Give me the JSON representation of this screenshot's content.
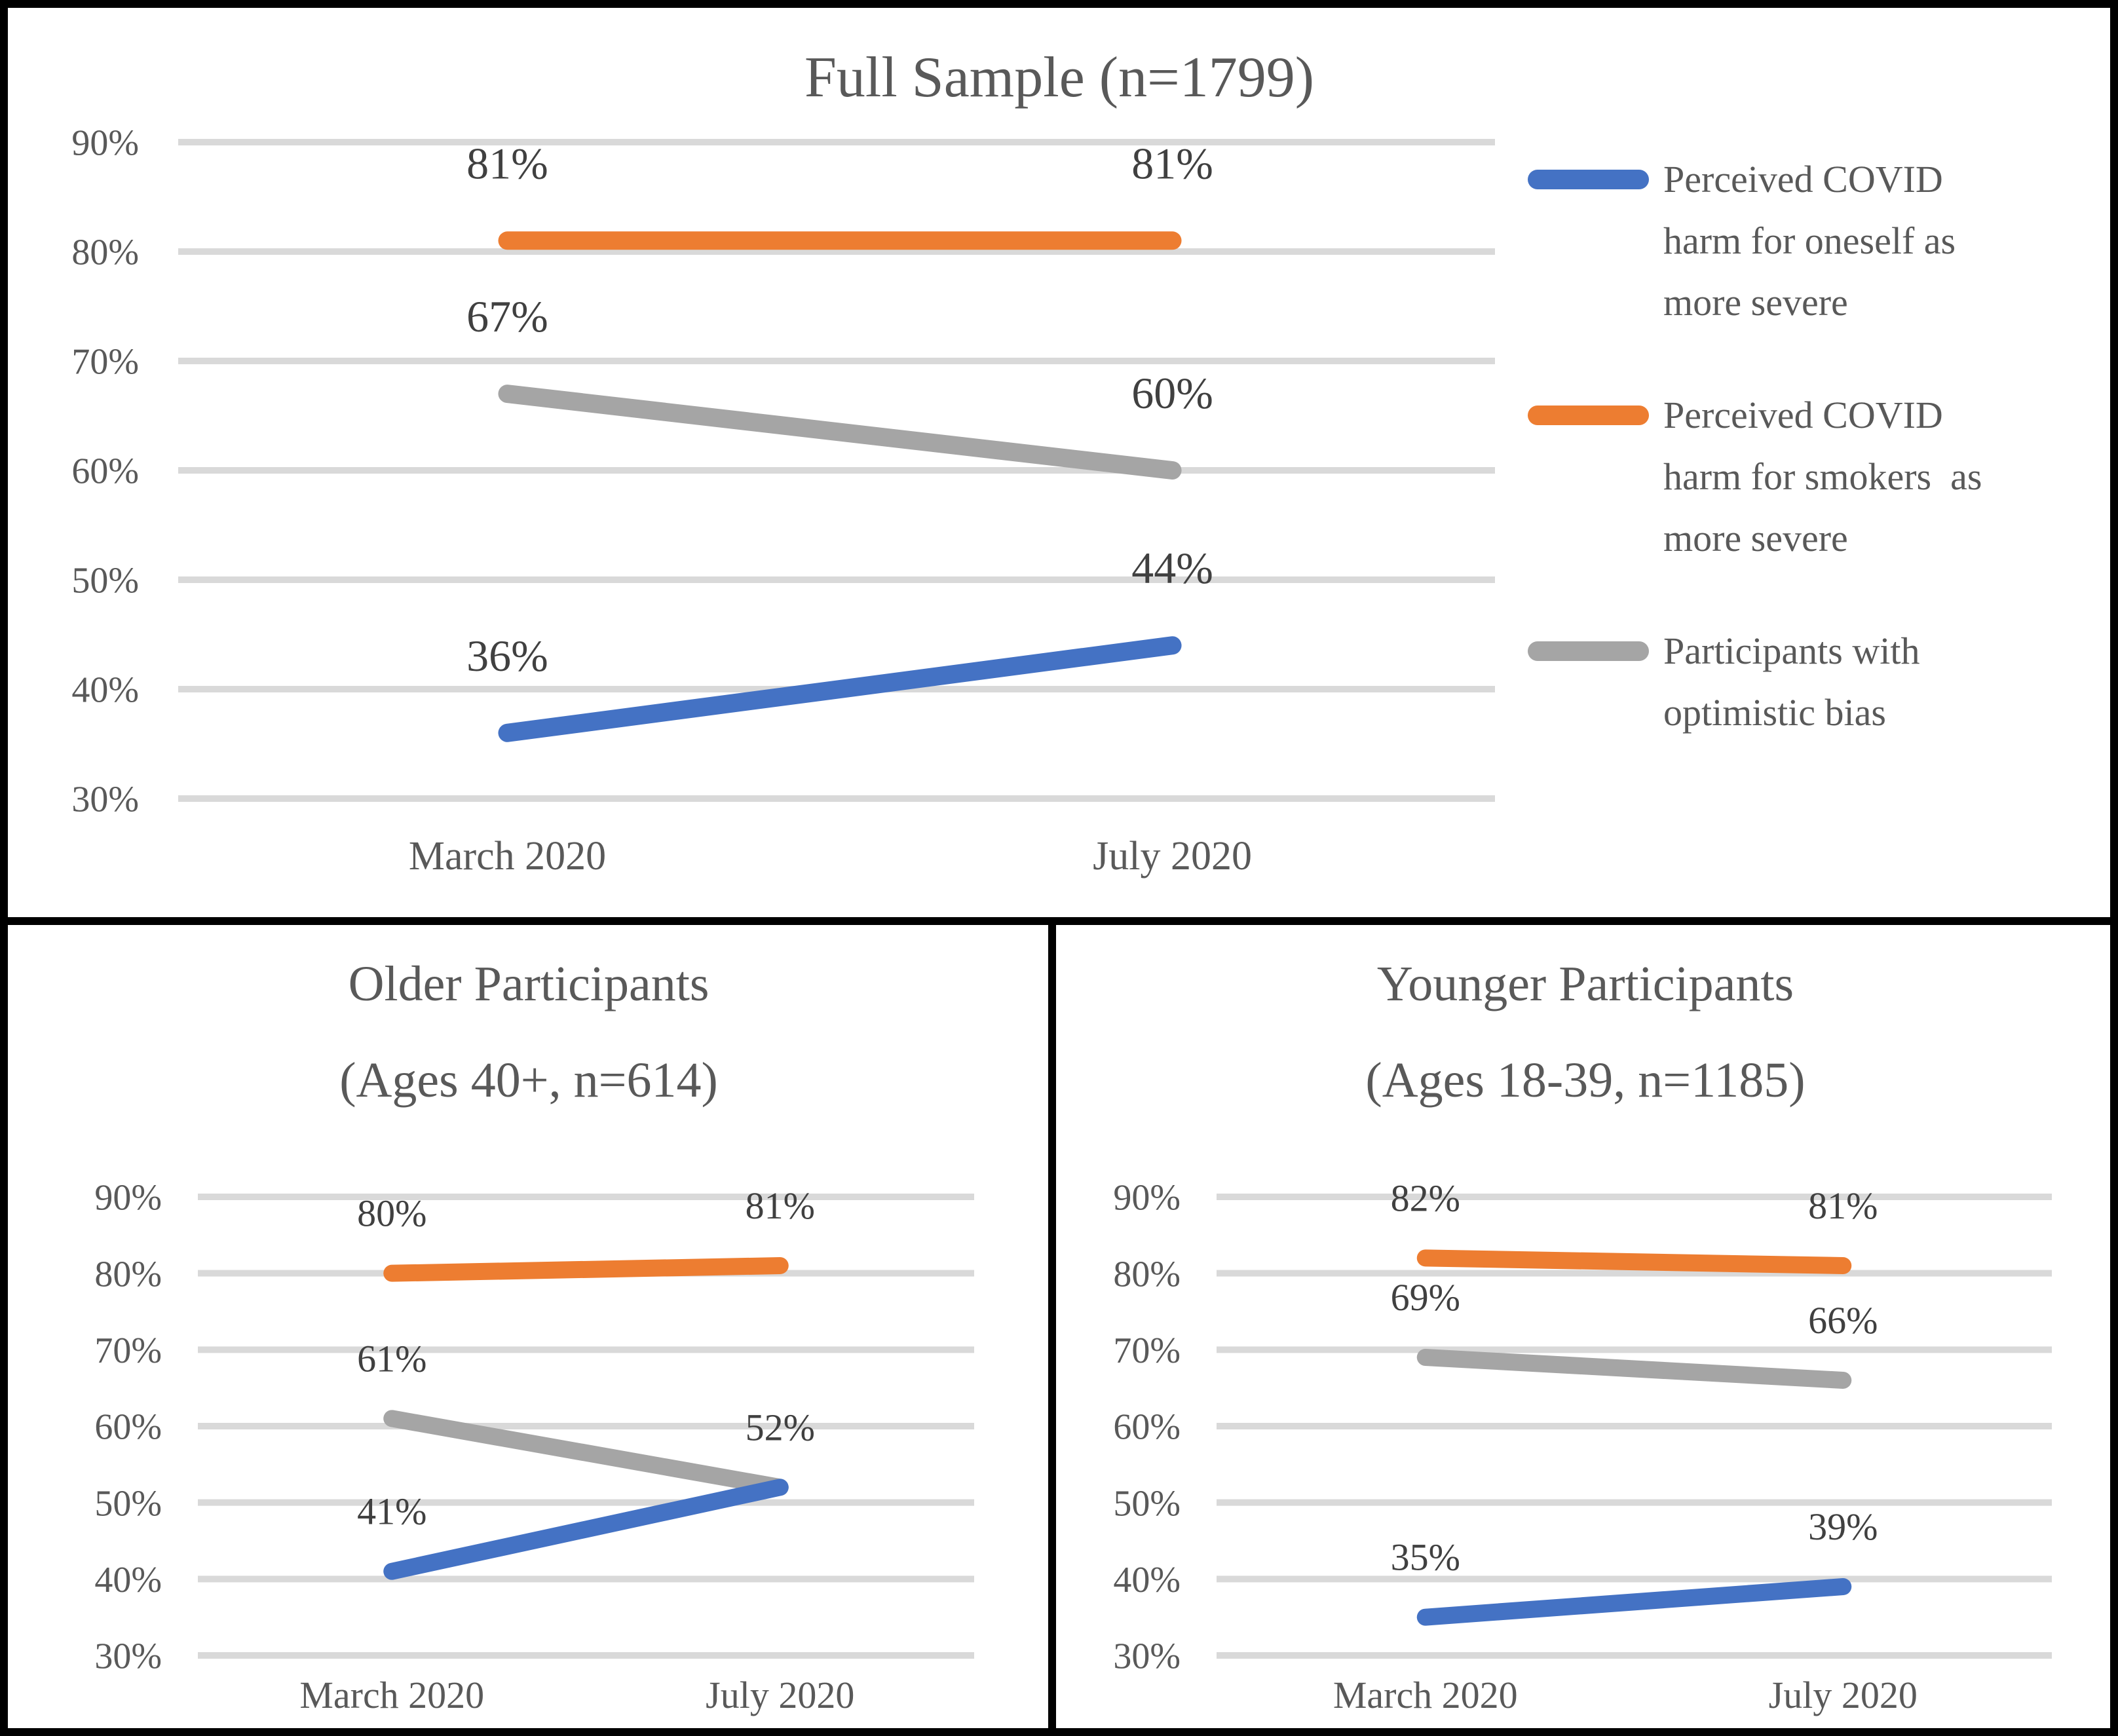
{
  "figure": {
    "background": "#ffffff",
    "border_color": "#000000"
  },
  "colors": {
    "blue": "#4472C4",
    "orange": "#ED7D31",
    "gray": "#A5A5A5",
    "gridline": "#D9D9D9",
    "title_text": "#595959",
    "axis_text": "#595959",
    "label_text": "#404040"
  },
  "legend": {
    "position": "right",
    "items": [
      {
        "id": "oneself",
        "color": "#4472C4",
        "lines": [
          "Perceived COVID",
          "harm for oneself as",
          "more severe"
        ]
      },
      {
        "id": "smokers",
        "color": "#ED7D31",
        "lines": [
          "Perceived COVID",
          "harm for smokers  as",
          "more severe"
        ]
      },
      {
        "id": "optimistic-bias",
        "color": "#A5A5A5",
        "lines": [
          "Participants with",
          "optimistic bias"
        ]
      }
    ]
  },
  "chart_data": [
    {
      "id": "full-sample",
      "type": "line",
      "title_lines": [
        "Full Sample (n=1799)"
      ],
      "categories": [
        "March 2020",
        "July 2020"
      ],
      "ylim": [
        30,
        90
      ],
      "yticks": [
        90,
        80,
        70,
        60,
        50,
        40,
        30
      ],
      "ytick_labels": [
        "90%",
        "80%",
        "70%",
        "60%",
        "50%",
        "40%",
        "30%"
      ],
      "grid": true,
      "legend_position": "right",
      "series": [
        {
          "name": "Perceived COVID harm for smokers as more severe",
          "color": "#ED7D31",
          "values": [
            81,
            81
          ],
          "point_labels": [
            "81%",
            "81%"
          ]
        },
        {
          "name": "Participants with optimistic bias",
          "color": "#A5A5A5",
          "values": [
            67,
            60
          ],
          "point_labels": [
            "67%",
            "60%"
          ]
        },
        {
          "name": "Perceived COVID harm for oneself as more severe",
          "color": "#4472C4",
          "values": [
            36,
            44
          ],
          "point_labels": [
            "36%",
            "44%"
          ]
        }
      ]
    },
    {
      "id": "older",
      "type": "line",
      "title_lines": [
        "Older Participants",
        "(Ages 40+, n=614)"
      ],
      "categories": [
        "March 2020",
        "July 2020"
      ],
      "ylim": [
        30,
        90
      ],
      "yticks": [
        90,
        80,
        70,
        60,
        50,
        40,
        30
      ],
      "ytick_labels": [
        "90%",
        "80%",
        "70%",
        "60%",
        "50%",
        "40%",
        "30%"
      ],
      "grid": true,
      "legend_position": "none",
      "series": [
        {
          "name": "Perceived COVID harm for smokers as more severe",
          "color": "#ED7D31",
          "values": [
            80,
            81
          ],
          "point_labels": [
            "80%",
            "81%"
          ]
        },
        {
          "name": "Participants with optimistic bias",
          "color": "#A5A5A5",
          "values": [
            61,
            52
          ],
          "point_labels": [
            "61%",
            "52%"
          ]
        },
        {
          "name": "Perceived COVID harm for oneself as more severe",
          "color": "#4472C4",
          "values": [
            41,
            52
          ],
          "point_labels": [
            "41%",
            null
          ]
        }
      ]
    },
    {
      "id": "younger",
      "type": "line",
      "title_lines": [
        "Younger Participants",
        "(Ages 18-39, n=1185)"
      ],
      "categories": [
        "March 2020",
        "July 2020"
      ],
      "ylim": [
        30,
        90
      ],
      "yticks": [
        90,
        80,
        70,
        60,
        50,
        40,
        30
      ],
      "ytick_labels": [
        "90%",
        "80%",
        "70%",
        "60%",
        "50%",
        "40%",
        "30%"
      ],
      "grid": true,
      "legend_position": "none",
      "series": [
        {
          "name": "Perceived COVID harm for smokers as more severe",
          "color": "#ED7D31",
          "values": [
            82,
            81
          ],
          "point_labels": [
            "82%",
            "81%"
          ]
        },
        {
          "name": "Participants with optimistic bias",
          "color": "#A5A5A5",
          "values": [
            69,
            66
          ],
          "point_labels": [
            "69%",
            "66%"
          ]
        },
        {
          "name": "Perceived COVID harm for oneself as more severe",
          "color": "#4472C4",
          "values": [
            35,
            39
          ],
          "point_labels": [
            "35%",
            "39%"
          ]
        }
      ]
    }
  ]
}
